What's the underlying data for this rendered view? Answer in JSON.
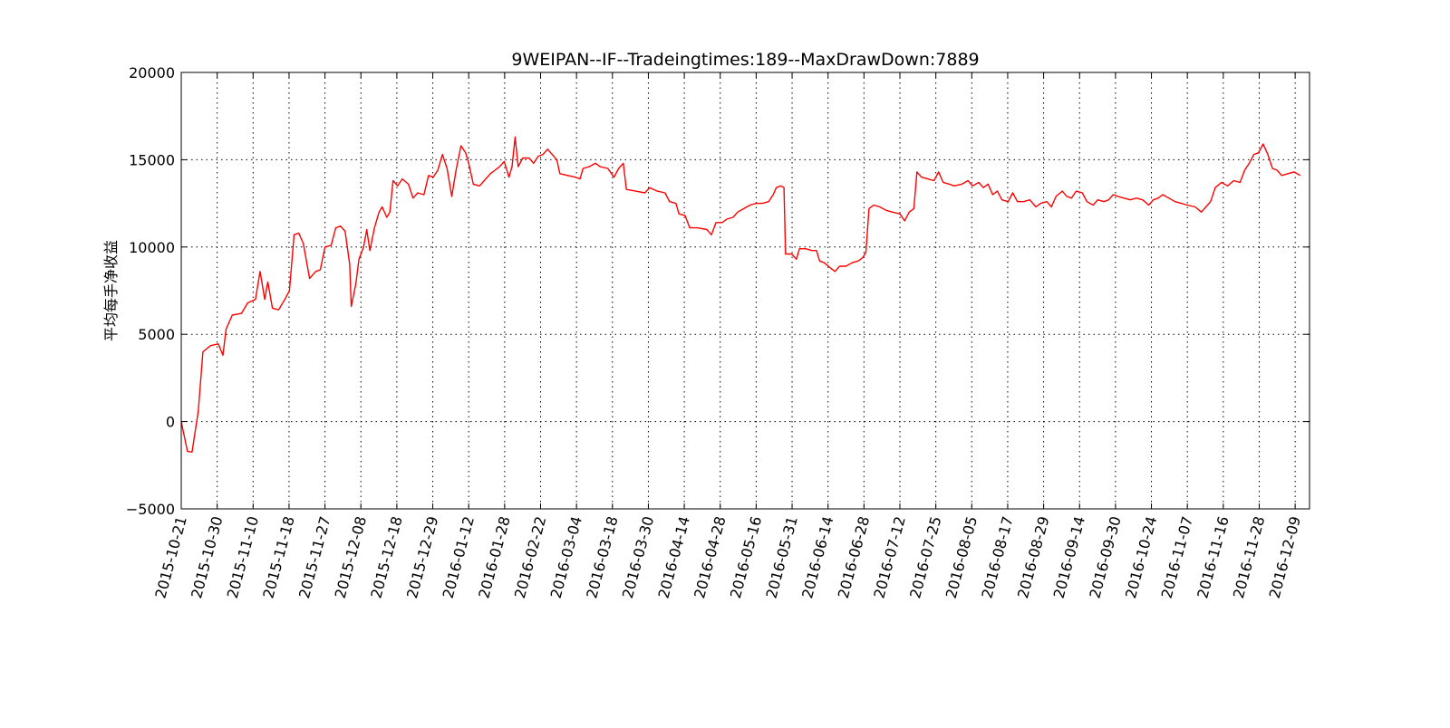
{
  "chart_data": {
    "type": "line",
    "title": "9WEIPAN--IF--Tradeingtimes:189--MaxDrawDown:7889",
    "xlabel": "",
    "ylabel": "平均每手净收益",
    "ylim": [
      -5000,
      20000
    ],
    "yticks": [
      "20000",
      "15000",
      "10000",
      "5000",
      "0",
      "−5000"
    ],
    "ytick_values": [
      20000,
      15000,
      10000,
      5000,
      0,
      -5000
    ],
    "grid": true,
    "xtick_labels": [
      "2015-10-21",
      "2015-10-30",
      "2015-11-10",
      "2015-11-18",
      "2015-11-27",
      "2015-12-08",
      "2015-12-18",
      "2015-12-29",
      "2016-01-12",
      "2016-01-28",
      "2016-02-22",
      "2016-03-04",
      "2016-03-18",
      "2016-03-30",
      "2016-04-14",
      "2016-04-28",
      "2016-05-16",
      "2016-05-31",
      "2016-06-14",
      "2016-06-28",
      "2016-07-12",
      "2016-07-25",
      "2016-08-05",
      "2016-08-17",
      "2016-08-29",
      "2016-09-14",
      "2016-09-30",
      "2016-10-24",
      "2016-11-07",
      "2016-11-16",
      "2016-11-28",
      "2016-12-09"
    ],
    "trade_count": 189,
    "series": [
      {
        "color": "#ff0000",
        "points": [
          [
            0,
            0
          ],
          [
            0.4,
            -1700
          ],
          [
            0.7,
            -1750
          ],
          [
            1.1,
            600
          ],
          [
            1.4,
            4000
          ],
          [
            1.9,
            4350
          ],
          [
            2.4,
            4450
          ],
          [
            2.7,
            3800
          ],
          [
            2.9,
            5300
          ],
          [
            3.3,
            6100
          ],
          [
            3.9,
            6200
          ],
          [
            4.3,
            6800
          ],
          [
            4.8,
            7000
          ],
          [
            5.1,
            8600
          ],
          [
            5.4,
            7000
          ],
          [
            5.6,
            8000
          ],
          [
            5.9,
            6500
          ],
          [
            6.3,
            6400
          ],
          [
            6.7,
            7000
          ],
          [
            7.0,
            7500
          ],
          [
            7.3,
            10700
          ],
          [
            7.6,
            10800
          ],
          [
            7.9,
            10200
          ],
          [
            8.3,
            8200
          ],
          [
            8.7,
            8600
          ],
          [
            9.0,
            8700
          ],
          [
            9.3,
            10000
          ],
          [
            9.7,
            10100
          ],
          [
            10.0,
            11100
          ],
          [
            10.3,
            11200
          ],
          [
            10.6,
            10900
          ],
          [
            10.9,
            9000
          ],
          [
            11.0,
            6600
          ],
          [
            11.3,
            7900
          ],
          [
            11.5,
            9300
          ],
          [
            11.8,
            10000
          ],
          [
            12.0,
            11000
          ],
          [
            12.2,
            9800
          ],
          [
            12.5,
            11100
          ],
          [
            12.8,
            12000
          ],
          [
            13.0,
            12300
          ],
          [
            13.3,
            11700
          ],
          [
            13.5,
            12000
          ],
          [
            13.7,
            13800
          ],
          [
            14.0,
            13500
          ],
          [
            14.3,
            13900
          ],
          [
            14.7,
            13600
          ],
          [
            15.0,
            12800
          ],
          [
            15.3,
            13100
          ],
          [
            15.7,
            13000
          ],
          [
            16.0,
            14100
          ],
          [
            16.3,
            14000
          ],
          [
            16.6,
            14400
          ],
          [
            16.9,
            15300
          ],
          [
            17.2,
            14500
          ],
          [
            17.5,
            12900
          ],
          [
            17.8,
            14500
          ],
          [
            18.1,
            15800
          ],
          [
            18.4,
            15400
          ],
          [
            18.6,
            14800
          ],
          [
            18.9,
            13600
          ],
          [
            19.3,
            13500
          ],
          [
            19.7,
            13900
          ],
          [
            20.0,
            14200
          ],
          [
            20.3,
            14400
          ],
          [
            20.6,
            14600
          ],
          [
            20.9,
            14900
          ],
          [
            21.2,
            14000
          ],
          [
            21.4,
            14600
          ],
          [
            21.6,
            16300
          ],
          [
            21.8,
            14600
          ],
          [
            22.1,
            15100
          ],
          [
            22.5,
            15100
          ],
          [
            22.8,
            14800
          ],
          [
            23.1,
            15200
          ],
          [
            23.4,
            15300
          ],
          [
            23.7,
            15600
          ],
          [
            24.0,
            15300
          ],
          [
            24.3,
            15000
          ],
          [
            24.5,
            14200
          ],
          [
            25.0,
            14100
          ],
          [
            25.5,
            14000
          ],
          [
            25.8,
            13900
          ],
          [
            26.0,
            14500
          ],
          [
            26.4,
            14600
          ],
          [
            26.8,
            14800
          ],
          [
            27.1,
            14600
          ],
          [
            27.6,
            14500
          ],
          [
            28.0,
            14000
          ],
          [
            28.3,
            14500
          ],
          [
            28.6,
            14800
          ],
          [
            28.8,
            13300
          ],
          [
            29.4,
            13200
          ],
          [
            30.0,
            13100
          ],
          [
            30.3,
            13400
          ],
          [
            30.8,
            13200
          ],
          [
            31.3,
            13100
          ],
          [
            31.6,
            12600
          ],
          [
            32.0,
            12500
          ],
          [
            32.2,
            11900
          ],
          [
            32.6,
            11800
          ],
          [
            32.9,
            11100
          ],
          [
            33.4,
            11100
          ],
          [
            34.0,
            11000
          ],
          [
            34.3,
            10700
          ],
          [
            34.6,
            11400
          ],
          [
            35.0,
            11400
          ],
          [
            35.3,
            11600
          ],
          [
            35.7,
            11700
          ],
          [
            36.0,
            12000
          ],
          [
            36.4,
            12200
          ],
          [
            36.8,
            12400
          ],
          [
            37.2,
            12500
          ],
          [
            37.6,
            12500
          ],
          [
            38.0,
            12600
          ],
          [
            38.3,
            13000
          ],
          [
            38.5,
            13400
          ],
          [
            38.8,
            13500
          ],
          [
            39.0,
            13400
          ],
          [
            39.1,
            9600
          ],
          [
            39.5,
            9600
          ],
          [
            39.8,
            9300
          ],
          [
            40.0,
            9900
          ],
          [
            40.4,
            9900
          ],
          [
            40.8,
            9800
          ],
          [
            41.1,
            9800
          ],
          [
            41.3,
            9200
          ],
          [
            41.6,
            9100
          ],
          [
            42.0,
            8800
          ],
          [
            42.3,
            8600
          ],
          [
            42.6,
            8900
          ],
          [
            43.0,
            8900
          ],
          [
            43.4,
            9100
          ],
          [
            43.8,
            9200
          ],
          [
            44.1,
            9400
          ],
          [
            44.3,
            9700
          ],
          [
            44.5,
            12200
          ],
          [
            44.8,
            12400
          ],
          [
            45.2,
            12300
          ],
          [
            45.6,
            12100
          ],
          [
            46.0,
            12000
          ],
          [
            46.5,
            11900
          ],
          [
            46.8,
            11500
          ],
          [
            47.1,
            12000
          ],
          [
            47.4,
            12200
          ],
          [
            47.6,
            14300
          ],
          [
            47.9,
            14000
          ],
          [
            48.3,
            13900
          ],
          [
            48.7,
            13800
          ],
          [
            49.0,
            14300
          ],
          [
            49.3,
            13700
          ],
          [
            49.7,
            13600
          ],
          [
            50.0,
            13500
          ],
          [
            50.5,
            13600
          ],
          [
            50.9,
            13800
          ],
          [
            51.2,
            13500
          ],
          [
            51.6,
            13700
          ],
          [
            51.9,
            13400
          ],
          [
            52.2,
            13600
          ],
          [
            52.5,
            13000
          ],
          [
            52.8,
            13200
          ],
          [
            53.1,
            12700
          ],
          [
            53.5,
            12600
          ],
          [
            53.8,
            13100
          ],
          [
            54.1,
            12600
          ],
          [
            54.5,
            12600
          ],
          [
            54.9,
            12700
          ],
          [
            55.3,
            12300
          ],
          [
            55.6,
            12500
          ],
          [
            56.0,
            12600
          ],
          [
            56.3,
            12300
          ],
          [
            56.6,
            12900
          ],
          [
            57.0,
            13200
          ],
          [
            57.3,
            12900
          ],
          [
            57.6,
            12800
          ],
          [
            57.9,
            13200
          ],
          [
            58.3,
            13100
          ],
          [
            58.6,
            12600
          ],
          [
            59.0,
            12400
          ],
          [
            59.3,
            12700
          ],
          [
            59.7,
            12600
          ],
          [
            60.0,
            12700
          ],
          [
            60.3,
            13000
          ],
          [
            60.6,
            12900
          ],
          [
            61.0,
            12800
          ],
          [
            61.4,
            12700
          ],
          [
            61.8,
            12800
          ],
          [
            62.2,
            12700
          ],
          [
            62.6,
            12400
          ],
          [
            62.9,
            12700
          ],
          [
            63.2,
            12800
          ],
          [
            63.5,
            13000
          ],
          [
            63.9,
            12800
          ],
          [
            64.3,
            12600
          ],
          [
            64.7,
            12500
          ],
          [
            65.1,
            12400
          ],
          [
            65.6,
            12300
          ],
          [
            66.0,
            12000
          ],
          [
            66.3,
            12300
          ],
          [
            66.6,
            12600
          ],
          [
            66.9,
            13400
          ],
          [
            67.3,
            13700
          ],
          [
            67.7,
            13500
          ],
          [
            68.1,
            13800
          ],
          [
            68.5,
            13700
          ],
          [
            68.8,
            14400
          ],
          [
            69.1,
            14800
          ],
          [
            69.4,
            15300
          ],
          [
            69.7,
            15400
          ],
          [
            70.0,
            15900
          ],
          [
            70.3,
            15300
          ],
          [
            70.6,
            14500
          ],
          [
            70.9,
            14400
          ],
          [
            71.2,
            14100
          ],
          [
            71.6,
            14200
          ],
          [
            72.0,
            14300
          ],
          [
            72.4,
            14100
          ]
        ]
      }
    ]
  }
}
